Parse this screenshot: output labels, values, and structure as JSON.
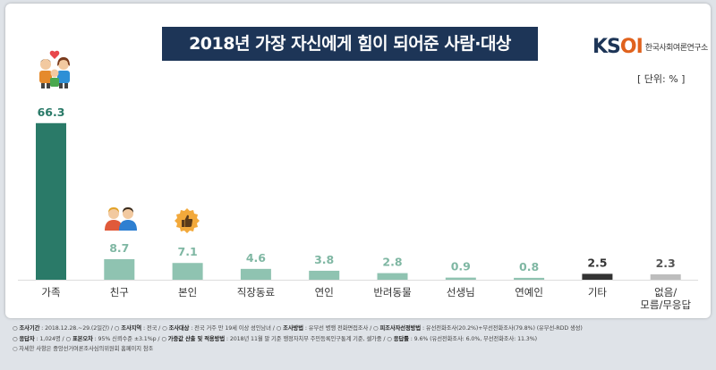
{
  "title": "2018년 가장 자신에게 힘이 되어준 사람·대상",
  "logo": {
    "mark_k": "KS",
    "mark_oi": "OI",
    "text": "한국사회여론연구소"
  },
  "unit": "[ 단위: % ]",
  "icons": [
    "family-icon",
    "friends-icon",
    "thumbs-up-icon"
  ],
  "colors": {
    "highlight": "#2a7a68",
    "regular": "#8fc3b1",
    "other": "#333333",
    "none": "#bdbdbd",
    "highlight_label": "#2a7a68",
    "regular_label": "#7fb7a3",
    "other_label": "#333333",
    "none_label": "#555555"
  },
  "chart_data": {
    "type": "bar",
    "title": "2018년 가장 자신에게 힘이 되어준 사람·대상",
    "categories": [
      "가족",
      "친구",
      "본인",
      "직장동료",
      "연인",
      "반려동물",
      "선생님",
      "연예인",
      "기타",
      "없음/\n모름/무응답"
    ],
    "values": [
      66.3,
      8.7,
      7.1,
      4.6,
      3.8,
      2.8,
      0.9,
      0.8,
      2.5,
      2.3
    ],
    "value_labels": [
      "66.3",
      "8.7",
      "7.1",
      "4.6",
      "3.8",
      "2.8",
      "0.9",
      "0.8",
      "2.5",
      "2.3"
    ],
    "bar_styles": [
      "highlight",
      "regular",
      "regular",
      "regular",
      "regular",
      "regular",
      "regular",
      "regular",
      "other",
      "none"
    ],
    "ylabel": "",
    "xlabel": "",
    "ylim": [
      0,
      70
    ],
    "grid": false,
    "legend": "none"
  },
  "footer": {
    "line1": [
      {
        "label": "조사기간",
        "text": ": 2018.12.28.~29.(2일간) /"
      },
      {
        "label": "조사지역",
        "text": ": 전국 /"
      },
      {
        "label": "조사대상",
        "text": ": 전국 거주 만 19세 이상 성인남녀 /"
      },
      {
        "label": "조사방법",
        "text": ": 유무선 병행 전화면접조사 /"
      },
      {
        "label": "피조사자선정방법",
        "text": ": 유선전화조사(20.2%)+무선전화조사(79.8%) (유무선-RDD 생성)"
      }
    ],
    "line2": [
      {
        "label": "응답자",
        "text": ": 1,024명 /"
      },
      {
        "label": "표본오차",
        "text": ": 95% 신뢰수준 ±3.1%p /"
      },
      {
        "label": "가중값 산출 및 적용방법",
        "text": ": 2018년 11월 말 기준 행정자치부 주민등록인구통계 기준, 셀가중 /"
      },
      {
        "label": "응답률",
        "text": ": 9.6% (유선전화조사: 6.0%, 무선전화조사: 11.3%)"
      }
    ],
    "line3": "자세한 사항은 중앙선거여론조사심의위원회 홈페이지 참조"
  }
}
